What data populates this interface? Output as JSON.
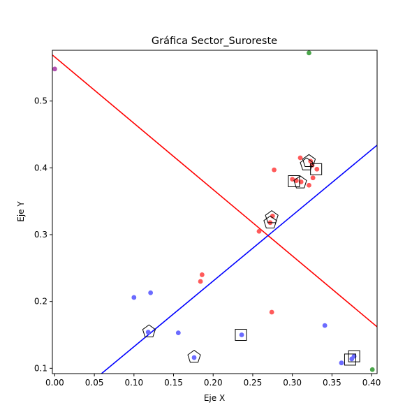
{
  "chart_data": {
    "type": "scatter",
    "title": "Gráfica Sector_Suroreste",
    "xlabel": "Eje X",
    "ylabel": "Eje Y",
    "xlim": [
      -0.003,
      0.407
    ],
    "ylim": [
      0.092,
      0.576
    ],
    "xticks": [
      "0.00",
      "0.05",
      "0.10",
      "0.15",
      "0.20",
      "0.25",
      "0.30",
      "0.35",
      "0.40"
    ],
    "yticks": [
      "0.1",
      "0.2",
      "0.3",
      "0.4",
      "0.5"
    ],
    "grid": false,
    "colors": {
      "red": "#ff5a5a",
      "blue": "#6b6bff",
      "green": "#4aa64a",
      "purple": "#b050b0",
      "red_line": "#ff0000",
      "blue_line": "#0000ff"
    },
    "points": [
      {
        "x": 0.0,
        "y": 0.548,
        "color": "purple"
      },
      {
        "x": 0.321,
        "y": 0.572,
        "color": "green"
      },
      {
        "x": 0.401,
        "y": 0.098,
        "color": "green"
      },
      {
        "x": 0.31,
        "y": 0.415,
        "color": "red"
      },
      {
        "x": 0.323,
        "y": 0.41,
        "color": "red"
      },
      {
        "x": 0.325,
        "y": 0.404,
        "color": "red"
      },
      {
        "x": 0.277,
        "y": 0.397,
        "color": "red"
      },
      {
        "x": 0.331,
        "y": 0.398,
        "color": "red"
      },
      {
        "x": 0.326,
        "y": 0.385,
        "color": "red"
      },
      {
        "x": 0.3,
        "y": 0.383,
        "color": "red"
      },
      {
        "x": 0.305,
        "y": 0.381,
        "color": "red"
      },
      {
        "x": 0.311,
        "y": 0.379,
        "color": "red"
      },
      {
        "x": 0.321,
        "y": 0.374,
        "color": "red"
      },
      {
        "x": 0.275,
        "y": 0.328,
        "color": "red"
      },
      {
        "x": 0.272,
        "y": 0.318,
        "color": "red"
      },
      {
        "x": 0.258,
        "y": 0.305,
        "color": "red"
      },
      {
        "x": 0.186,
        "y": 0.24,
        "color": "red"
      },
      {
        "x": 0.184,
        "y": 0.23,
        "color": "red"
      },
      {
        "x": 0.274,
        "y": 0.184,
        "color": "red"
      },
      {
        "x": 0.121,
        "y": 0.213,
        "color": "blue"
      },
      {
        "x": 0.1,
        "y": 0.206,
        "color": "blue"
      },
      {
        "x": 0.341,
        "y": 0.164,
        "color": "blue"
      },
      {
        "x": 0.118,
        "y": 0.154,
        "color": "blue"
      },
      {
        "x": 0.156,
        "y": 0.153,
        "color": "blue"
      },
      {
        "x": 0.236,
        "y": 0.15,
        "color": "blue"
      },
      {
        "x": 0.176,
        "y": 0.116,
        "color": "blue"
      },
      {
        "x": 0.378,
        "y": 0.118,
        "color": "blue"
      },
      {
        "x": 0.375,
        "y": 0.114,
        "color": "blue"
      },
      {
        "x": 0.362,
        "y": 0.108,
        "color": "blue"
      }
    ],
    "markers": [
      {
        "shape": "pentagon",
        "x": 0.321,
        "y": 0.41
      },
      {
        "shape": "pentagon",
        "x": 0.318,
        "y": 0.405
      },
      {
        "shape": "square",
        "x": 0.33,
        "y": 0.398
      },
      {
        "shape": "square",
        "x": 0.302,
        "y": 0.38
      },
      {
        "shape": "pentagon",
        "x": 0.31,
        "y": 0.378
      },
      {
        "shape": "pentagon",
        "x": 0.274,
        "y": 0.326
      },
      {
        "shape": "pentagon",
        "x": 0.272,
        "y": 0.318
      },
      {
        "shape": "pentagon",
        "x": 0.119,
        "y": 0.155
      },
      {
        "shape": "square",
        "x": 0.235,
        "y": 0.15
      },
      {
        "shape": "pentagon",
        "x": 0.176,
        "y": 0.117
      },
      {
        "shape": "square",
        "x": 0.378,
        "y": 0.118
      },
      {
        "shape": "square",
        "x": 0.373,
        "y": 0.113
      }
    ],
    "lines": [
      {
        "name": "red",
        "color": "red_line",
        "points": [
          [
            -0.003,
            0.569
          ],
          [
            0.407,
            0.162
          ]
        ]
      },
      {
        "name": "blue",
        "color": "blue_line",
        "points": [
          [
            0.059,
            0.092
          ],
          [
            0.407,
            0.434
          ]
        ]
      }
    ]
  }
}
